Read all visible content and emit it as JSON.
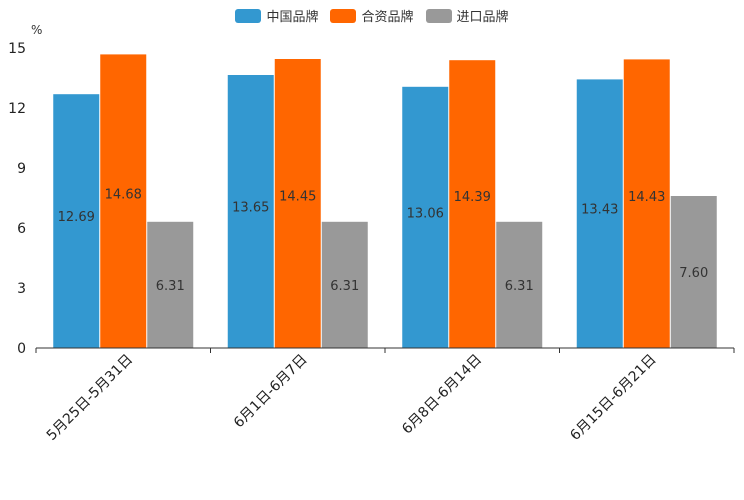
{
  "chart_data": {
    "type": "bar",
    "ylabel": "%",
    "ylim": [
      0,
      15
    ],
    "yticks": [
      0,
      3,
      6,
      9,
      12,
      15
    ],
    "categories": [
      "5月25日-5月31日",
      "6月1日-6月7日",
      "6月8日-6月14日",
      "6月15日-6月21日"
    ],
    "series": [
      {
        "name": "中国品牌",
        "color": "#3398d0",
        "values": [
          12.69,
          13.65,
          13.06,
          13.43
        ],
        "labels": [
          "12.69",
          "13.65",
          "13.06",
          "13.43"
        ]
      },
      {
        "name": "合资品牌",
        "color": "#ff6600",
        "values": [
          14.68,
          14.45,
          14.39,
          14.43
        ],
        "labels": [
          "14.68",
          "14.45",
          "14.39",
          "14.43"
        ]
      },
      {
        "name": "进口品牌",
        "color": "#999999",
        "values": [
          6.31,
          6.31,
          6.31,
          7.6
        ],
        "labels": [
          "6.31",
          "6.31",
          "6.31",
          "7.60"
        ]
      }
    ],
    "legend_position": "top-center",
    "grid": false
  }
}
